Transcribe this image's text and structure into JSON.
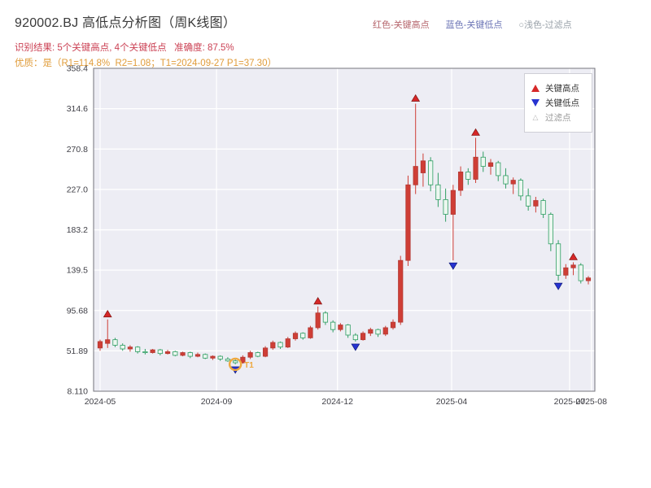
{
  "header": {
    "title": "920002.BJ 高低点分析图（周K线图）",
    "legend_top": {
      "high": "红色-关键高点",
      "low": "蓝色-关键低点",
      "filter": "○浅色-过滤点"
    },
    "result_line": "识别结果: 5个关键高点, 4个关键低点   准确度: 87.5%",
    "quality_line": "优质：是（R1=114.8%  R2=1.08；T1=2024-09-27 P1=37.30）"
  },
  "legend_box": {
    "items": [
      {
        "label": "关键高点",
        "marker": "up-triangle-icon",
        "color": "#d62728"
      },
      {
        "label": "关键低点",
        "marker": "down-triangle-icon",
        "color": "#2733d0"
      },
      {
        "label": "过滤点",
        "marker": "hollow-triangle-icon",
        "color": "#b8b8b8"
      }
    ]
  },
  "chart_data": {
    "type": "candlestick",
    "title": "920002.BJ 高低点分析图（周K线图）",
    "xlabel": "",
    "ylabel": "",
    "grid": true,
    "legend_position": "upper right",
    "background": "#ededf4",
    "ylim": [
      8.11,
      358.4
    ],
    "y_ticks": [
      358.4,
      314.6,
      270.8,
      227.0,
      183.2,
      139.5,
      95.68,
      51.89,
      8.11
    ],
    "y_tick_labels": [
      "358.4",
      "314.6",
      "270.8",
      "227.0",
      "183.2",
      "139.5",
      "95.68",
      "51.89",
      "8.110"
    ],
    "x_ticks": [
      {
        "label": "2024-05",
        "index": 0
      },
      {
        "label": "2024-09",
        "index": 15.5
      },
      {
        "label": "2024-12",
        "index": 31.6
      },
      {
        "label": "2025-04",
        "index": 46.8
      },
      {
        "label": "2025-07",
        "index": 62.5
      },
      {
        "label": "2025-08",
        "index": 65.4
      }
    ],
    "colors": {
      "up": "#cf3e36",
      "up_fill": "#cf3e36",
      "down": "#2f9e63",
      "down_fill": "#ecf7f0",
      "key_high": "#d62728",
      "key_low": "#2733d0",
      "t1": "#eea83e"
    },
    "candles": [
      [
        55,
        64,
        52,
        62
      ],
      [
        60,
        86,
        55,
        64
      ],
      [
        64,
        66,
        56,
        58
      ],
      [
        58,
        60,
        52,
        54
      ],
      [
        54,
        58,
        51,
        56
      ],
      [
        56,
        57,
        49,
        51
      ],
      [
        51,
        54,
        48,
        50
      ],
      [
        50,
        54,
        49,
        53
      ],
      [
        53,
        54,
        47,
        49
      ],
      [
        49,
        53,
        48,
        51
      ],
      [
        51,
        52,
        46,
        47
      ],
      [
        47,
        51,
        46,
        50
      ],
      [
        50,
        51,
        44,
        46
      ],
      [
        46,
        50,
        45,
        48
      ],
      [
        48,
        49,
        43,
        44
      ],
      [
        44,
        47,
        42,
        46
      ],
      [
        46,
        47,
        41,
        43
      ],
      [
        43,
        45,
        40,
        41
      ],
      [
        41,
        43,
        37.3,
        39
      ],
      [
        39,
        47,
        38,
        45
      ],
      [
        45,
        52,
        43,
        50
      ],
      [
        50,
        51,
        45,
        46
      ],
      [
        46,
        57,
        45,
        55
      ],
      [
        55,
        63,
        53,
        61
      ],
      [
        61,
        62,
        54,
        56
      ],
      [
        56,
        67,
        55,
        65
      ],
      [
        65,
        73,
        63,
        71
      ],
      [
        71,
        72,
        64,
        66
      ],
      [
        66,
        79,
        65,
        77
      ],
      [
        77,
        100,
        75,
        93
      ],
      [
        93,
        95,
        80,
        83
      ],
      [
        83,
        85,
        72,
        75
      ],
      [
        75,
        82,
        73,
        80
      ],
      [
        80,
        81,
        66,
        69
      ],
      [
        69,
        71,
        62,
        64
      ],
      [
        64,
        73,
        63,
        71
      ],
      [
        71,
        77,
        68,
        75
      ],
      [
        75,
        76,
        67,
        70
      ],
      [
        70,
        79,
        68,
        77
      ],
      [
        77,
        86,
        75,
        83
      ],
      [
        83,
        155,
        80,
        150
      ],
      [
        150,
        242,
        144,
        232
      ],
      [
        232,
        320,
        222,
        252
      ],
      [
        245,
        266,
        230,
        258
      ],
      [
        258,
        262,
        225,
        232
      ],
      [
        232,
        245,
        208,
        216
      ],
      [
        216,
        228,
        192,
        200
      ],
      [
        200,
        232,
        150,
        226
      ],
      [
        226,
        252,
        220,
        246
      ],
      [
        246,
        250,
        232,
        238
      ],
      [
        238,
        283,
        234,
        262
      ],
      [
        262,
        268,
        246,
        252
      ],
      [
        252,
        260,
        243,
        256
      ],
      [
        256,
        258,
        236,
        242
      ],
      [
        242,
        250,
        228,
        233
      ],
      [
        233,
        240,
        222,
        237
      ],
      [
        237,
        239,
        215,
        220
      ],
      [
        220,
        228,
        204,
        209
      ],
      [
        209,
        219,
        202,
        215
      ],
      [
        215,
        217,
        196,
        200
      ],
      [
        200,
        202,
        160,
        168
      ],
      [
        168,
        172,
        128,
        134
      ],
      [
        134,
        146,
        130,
        142
      ],
      [
        142,
        148,
        134,
        145
      ],
      [
        145,
        147,
        125,
        128
      ],
      [
        128,
        133,
        124,
        131
      ]
    ],
    "key_highs": [
      1,
      29,
      42,
      50,
      63
    ],
    "key_lows": [
      18,
      34,
      47,
      61
    ],
    "annotations": {
      "t1_label": "T1",
      "t1_index": 18,
      "t1_price": 37.3
    }
  }
}
